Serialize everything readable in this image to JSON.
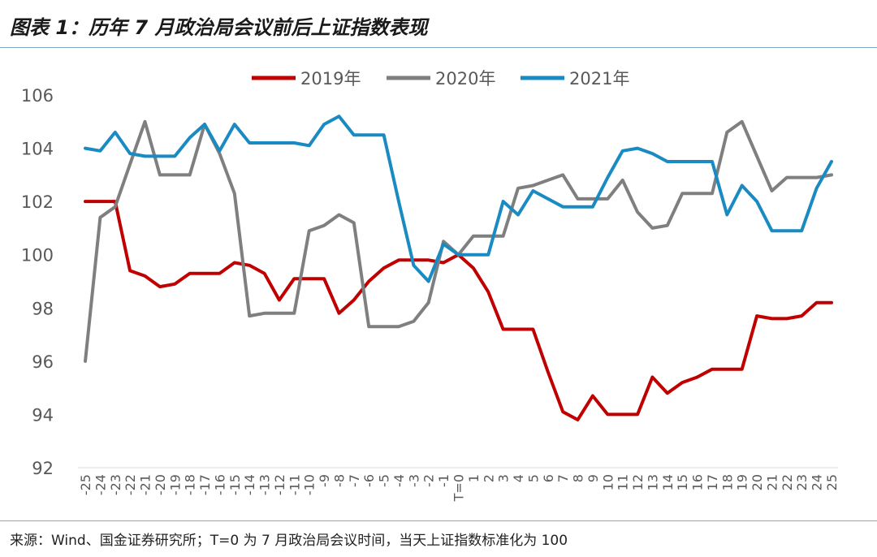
{
  "title": "图表 1：历年 7 月政治局会议前后上证指数表现",
  "source_note": "来源：Wind、国金证券研究所；T=0 为 7 月政治局会议时间，当天上证指数标准化为 100",
  "chart_data": {
    "type": "line",
    "title": "图表 1：历年 7 月政治局会议前后上证指数表现",
    "xlabel": "",
    "ylabel": "",
    "ylim": [
      92,
      106
    ],
    "yticks": [
      92,
      94,
      96,
      98,
      100,
      102,
      104,
      106
    ],
    "grid": false,
    "legend_position": "top-center",
    "categories": [
      "-25",
      "-24",
      "-23",
      "-22",
      "-21",
      "-20",
      "-19",
      "-18",
      "-17",
      "-16",
      "-15",
      "-14",
      "-13",
      "-12",
      "-11",
      "-10",
      "-9",
      "-8",
      "-7",
      "-6",
      "-5",
      "-4",
      "-3",
      "-2",
      "-1",
      "T=0",
      "1",
      "2",
      "3",
      "4",
      "5",
      "6",
      "7",
      "8",
      "9",
      "10",
      "11",
      "12",
      "13",
      "14",
      "15",
      "16",
      "17",
      "18",
      "19",
      "20",
      "21",
      "22",
      "23",
      "24",
      "25"
    ],
    "series": [
      {
        "name": "2019年",
        "color": "#c00000",
        "values": [
          102.0,
          102.0,
          102.0,
          99.4,
          99.2,
          98.8,
          98.9,
          99.3,
          99.3,
          99.3,
          99.7,
          99.6,
          99.3,
          98.3,
          99.1,
          99.1,
          99.1,
          97.8,
          98.3,
          99.0,
          99.5,
          99.8,
          99.8,
          99.8,
          99.7,
          100.0,
          99.5,
          98.6,
          97.2,
          97.2,
          97.2,
          95.6,
          94.1,
          93.8,
          94.7,
          94.0,
          94.0,
          94.0,
          95.4,
          94.8,
          95.2,
          95.4,
          95.7,
          95.7,
          95.7,
          97.7,
          97.6,
          97.6,
          97.7,
          98.2,
          98.2
        ]
      },
      {
        "name": "2020年",
        "color": "#7f7f7f",
        "values": [
          96.0,
          101.4,
          101.8,
          103.4,
          105.0,
          103.0,
          103.0,
          103.0,
          104.9,
          103.8,
          102.3,
          97.7,
          97.8,
          97.8,
          97.8,
          100.9,
          101.1,
          101.5,
          101.2,
          97.3,
          97.3,
          97.3,
          97.5,
          98.2,
          100.5,
          100.0,
          100.7,
          100.7,
          100.7,
          102.5,
          102.6,
          102.8,
          103.0,
          102.1,
          102.1,
          102.1,
          102.8,
          101.6,
          101.0,
          101.1,
          102.3,
          102.3,
          102.3,
          104.6,
          105.0,
          103.7,
          102.4,
          102.9,
          102.9,
          102.9,
          103.0
        ]
      },
      {
        "name": "2021年",
        "color": "#1a8bc2",
        "values": [
          104.0,
          103.9,
          104.6,
          103.8,
          103.7,
          103.7,
          103.7,
          104.4,
          104.9,
          103.9,
          104.9,
          104.2,
          104.2,
          104.2,
          104.2,
          104.1,
          104.9,
          105.2,
          104.5,
          104.5,
          104.5,
          102.0,
          99.6,
          99.0,
          100.4,
          100.0,
          100.0,
          100.0,
          102.0,
          101.5,
          102.4,
          102.1,
          101.8,
          101.8,
          101.8,
          102.9,
          103.9,
          104.0,
          103.8,
          103.5,
          103.5,
          103.5,
          103.5,
          101.5,
          102.6,
          102.0,
          100.9,
          100.9,
          100.9,
          102.5,
          103.5
        ]
      }
    ]
  }
}
